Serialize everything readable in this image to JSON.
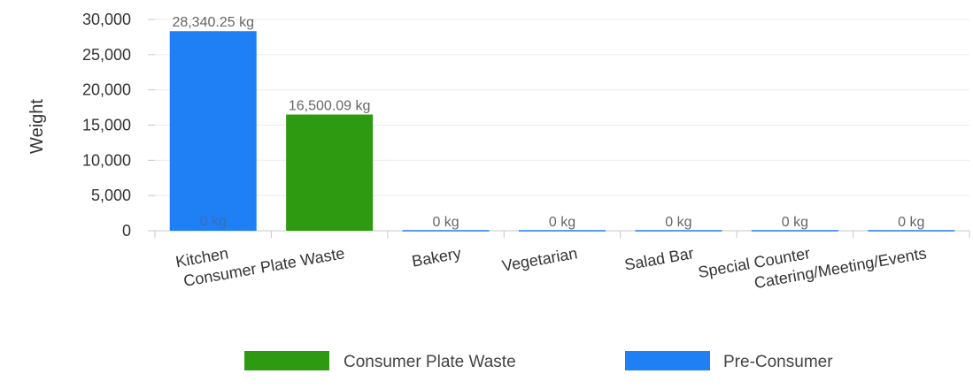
{
  "chart_data": {
    "type": "bar",
    "title": "",
    "xlabel": "",
    "ylabel": "Weight",
    "ylim": [
      0,
      30000
    ],
    "yticks": [
      0,
      5000,
      10000,
      15000,
      20000,
      25000,
      30000
    ],
    "ytick_labels": [
      "0",
      "5,000",
      "10,000",
      "15,000",
      "20,000",
      "25,000",
      "30,000"
    ],
    "categories": [
      "Kitchen",
      "Consumer Plate Waste",
      "Bakery",
      "Vegetarian",
      "Salad Bar",
      "Special Counter",
      "Catering/Meeting/Events"
    ],
    "series": [
      {
        "name": "Consumer Plate Waste",
        "color": "#2e9a12",
        "values": [
          0,
          16500.09,
          0,
          0,
          0,
          0,
          0
        ],
        "labels": [
          "",
          "16,500.09 kg",
          "",
          "",
          "",
          "",
          ""
        ]
      },
      {
        "name": "Pre-Consumer",
        "color": "#1f7ff5",
        "values": [
          28340.25,
          0,
          0,
          0,
          0,
          0,
          0
        ],
        "labels": [
          "28,340.25 kg",
          "",
          "0 kg",
          "0 kg",
          "0 kg",
          "0 kg",
          "0 kg"
        ]
      }
    ],
    "extra_labels": [
      {
        "category": "Kitchen",
        "text": "0 kg"
      }
    ],
    "grid": true,
    "legend_position": "bottom"
  }
}
